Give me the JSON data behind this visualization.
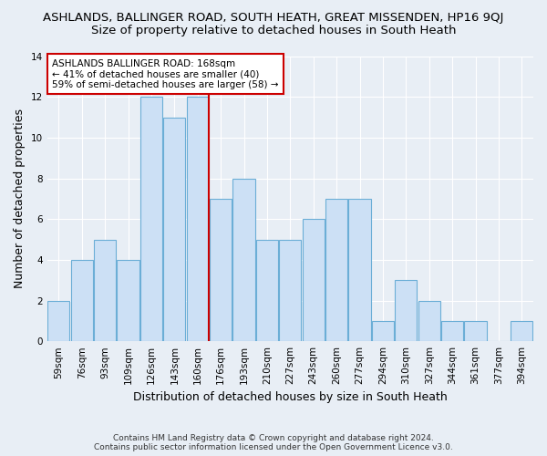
{
  "title_line1": "ASHLANDS, BALLINGER ROAD, SOUTH HEATH, GREAT MISSENDEN, HP16 9QJ",
  "title_line2": "Size of property relative to detached houses in South Heath",
  "xlabel": "Distribution of detached houses by size in South Heath",
  "ylabel": "Number of detached properties",
  "footnote1": "Contains HM Land Registry data © Crown copyright and database right 2024.",
  "footnote2": "Contains public sector information licensed under the Open Government Licence v3.0.",
  "bar_labels": [
    "59sqm",
    "76sqm",
    "93sqm",
    "109sqm",
    "126sqm",
    "143sqm",
    "160sqm",
    "176sqm",
    "193sqm",
    "210sqm",
    "227sqm",
    "243sqm",
    "260sqm",
    "277sqm",
    "294sqm",
    "310sqm",
    "327sqm",
    "344sqm",
    "361sqm",
    "377sqm",
    "394sqm"
  ],
  "bar_values": [
    2,
    4,
    5,
    4,
    12,
    11,
    12,
    7,
    8,
    5,
    5,
    6,
    7,
    7,
    1,
    3,
    2,
    1,
    1,
    0,
    1
  ],
  "bar_color": "#cce0f5",
  "bar_edge_color": "#6baed6",
  "vline_x": 6.5,
  "vline_color": "#cc0000",
  "annotation_title": "ASHLANDS BALLINGER ROAD: 168sqm",
  "annotation_line2": "← 41% of detached houses are smaller (40)",
  "annotation_line3": "59% of semi-detached houses are larger (58) →",
  "annotation_box_color": "white",
  "annotation_box_edge": "#cc0000",
  "ylim": [
    0,
    14
  ],
  "yticks": [
    0,
    2,
    4,
    6,
    8,
    10,
    12,
    14
  ],
  "bg_color": "#e8eef5",
  "plot_bg_color": "#e8eef5",
  "grid_color": "white",
  "title1_fontsize": 9.5,
  "title2_fontsize": 9.5,
  "xlabel_fontsize": 9,
  "ylabel_fontsize": 9,
  "annotation_fontsize": 7.5,
  "tick_fontsize": 7.5,
  "footnote_fontsize": 6.5
}
